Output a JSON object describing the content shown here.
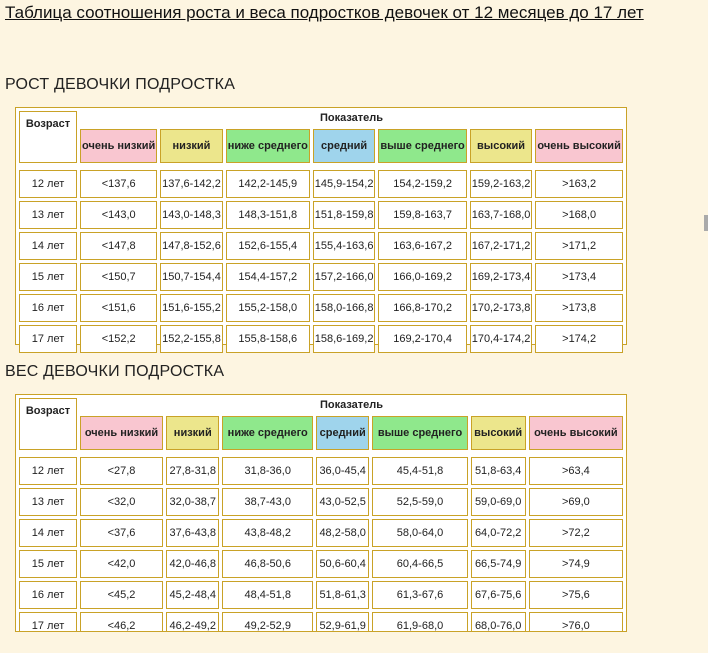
{
  "title": "Таблица соотношения роста и веса подростков девочек от 12 месяцев до 17 лет",
  "height_section": {
    "heading": "РОСТ ДЕВОЧКИ ПОДРОСТКА",
    "age_header": "Возраст",
    "indicator_header": "Показатель",
    "categories": [
      "очень низкий",
      "низкий",
      "ниже среднего",
      "средний",
      "выше среднего",
      "высокий",
      "очень высокий"
    ],
    "rows": [
      {
        "age": "12 лет",
        "cells": [
          "<137,6",
          "137,6-142,2",
          "142,2-145,9",
          "145,9-154,2",
          "154,2-159,2",
          "159,2-163,2",
          ">163,2"
        ]
      },
      {
        "age": "13 лет",
        "cells": [
          "<143,0",
          "143,0-148,3",
          "148,3-151,8",
          "151,8-159,8",
          "159,8-163,7",
          "163,7-168,0",
          ">168,0"
        ]
      },
      {
        "age": "14 лет",
        "cells": [
          "<147,8",
          "147,8-152,6",
          "152,6-155,4",
          "155,4-163,6",
          "163,6-167,2",
          "167,2-171,2",
          ">171,2"
        ]
      },
      {
        "age": "15 лет",
        "cells": [
          "<150,7",
          "150,7-154,4",
          "154,4-157,2",
          "157,2-166,0",
          "166,0-169,2",
          "169,2-173,4",
          ">173,4"
        ]
      },
      {
        "age": "16 лет",
        "cells": [
          "<151,6",
          "151,6-155,2",
          "155,2-158,0",
          "158,0-166,8",
          "166,8-170,2",
          "170,2-173,8",
          ">173,8"
        ]
      },
      {
        "age": "17 лет",
        "cells": [
          "<152,2",
          "152,2-155,8",
          "155,8-158,6",
          "158,6-169,2",
          "169,2-170,4",
          "170,4-174,2",
          ">174,2"
        ]
      }
    ]
  },
  "weight_section": {
    "heading": "ВЕС ДЕВОЧКИ ПОДРОСТКА",
    "age_header": "Возраст",
    "indicator_header": "Показатель",
    "categories": [
      "очень низкий",
      "низкий",
      "ниже среднего",
      "средний",
      "выше среднего",
      "высокий",
      "очень высокий"
    ],
    "rows": [
      {
        "age": "12 лет",
        "cells": [
          "<27,8",
          "27,8-31,8",
          "31,8-36,0",
          "36,0-45,4",
          "45,4-51,8",
          "51,8-63,4",
          ">63,4"
        ]
      },
      {
        "age": "13 лет",
        "cells": [
          "<32,0",
          "32,0-38,7",
          "38,7-43,0",
          "43,0-52,5",
          "52,5-59,0",
          "59,0-69,0",
          ">69,0"
        ]
      },
      {
        "age": "14 лет",
        "cells": [
          "<37,6",
          "37,6-43,8",
          "43,8-48,2",
          "48,2-58,0",
          "58,0-64,0",
          "64,0-72,2",
          ">72,2"
        ]
      },
      {
        "age": "15 лет",
        "cells": [
          "<42,0",
          "42,0-46,8",
          "46,8-50,6",
          "50,6-60,4",
          "60,4-66,5",
          "66,5-74,9",
          ">74,9"
        ]
      },
      {
        "age": "16 лет",
        "cells": [
          "<45,2",
          "45,2-48,4",
          "48,4-51,8",
          "51,8-61,3",
          "61,3-67,6",
          "67,6-75,6",
          ">75,6"
        ]
      },
      {
        "age": "17 лет",
        "cells": [
          "<46,2",
          "46,2-49,2",
          "49,2-52,9",
          "52,9-61,9",
          "61,9-68,0",
          "68,0-76,0",
          ">76,0"
        ]
      }
    ]
  },
  "colors": {
    "very_low": "#f9c6d0",
    "low": "#ece68c",
    "below_avg": "#8fe88c",
    "avg": "#9fd4ec",
    "above_avg": "#8fe88c",
    "high": "#ece68c",
    "very_high": "#f9c6d0",
    "border": "#c9a227",
    "page_bg": "#fdf5e1"
  }
}
